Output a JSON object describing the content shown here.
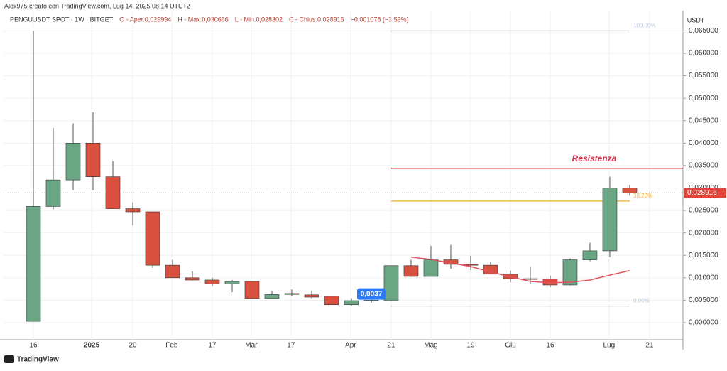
{
  "header": {
    "caption": "Alex975 creato con TradingView.com, Lug 14, 2025 08:14 UTC+2",
    "legend": [
      "PENGUUSDT SPOT · 1W · BITGET",
      "O - Aper.0,029994",
      "H - Max.0,030666",
      "L - Min.0,028302",
      "C - Chius.0,028916",
      "−0,001078 (−3,59%)"
    ]
  },
  "chart_data": {
    "type": "candlestick",
    "y_axis_title": "USDT",
    "up_color": "#6aa584",
    "down_color": "#d9503f",
    "overlay_color": "#e0505e",
    "open": [
      0.0003,
      0.0259,
      0.0318,
      0.04,
      0.0325,
      0.0254,
      0.0247,
      0.0128,
      0.01,
      0.0095,
      0.0086,
      0.0092,
      0.0054,
      0.0065,
      0.0062,
      0.0059,
      0.004,
      0.0049,
      0.0049,
      0.0127,
      0.0103,
      0.014,
      0.013,
      0.0128,
      0.0108,
      0.0098,
      0.0097,
      0.0084,
      0.014,
      0.016,
      0.029994
    ],
    "high": [
      0.065,
      0.0434,
      0.0444,
      0.0469,
      0.036,
      0.0268,
      0.0247,
      0.014,
      0.0114,
      0.01,
      0.0095,
      0.0092,
      0.0071,
      0.0074,
      0.0071,
      0.0059,
      0.0055,
      0.0055,
      0.0127,
      0.014,
      0.0171,
      0.0173,
      0.0149,
      0.0136,
      0.0116,
      0.0124,
      0.0105,
      0.0143,
      0.0178,
      0.0325,
      0.030666
    ],
    "low": [
      0.0003,
      0.0252,
      0.0295,
      0.0295,
      0.0254,
      0.0217,
      0.0122,
      0.01,
      0.0094,
      0.0081,
      0.0068,
      0.0054,
      0.0054,
      0.006,
      0.0054,
      0.004,
      0.0037,
      0.0044,
      0.0048,
      0.0102,
      0.0103,
      0.012,
      0.0117,
      0.0108,
      0.009,
      0.0086,
      0.0079,
      0.0083,
      0.0137,
      0.0146,
      0.028302
    ],
    "close": [
      0.0259,
      0.0318,
      0.04,
      0.0325,
      0.0254,
      0.0247,
      0.0128,
      0.01,
      0.0095,
      0.0086,
      0.0092,
      0.0054,
      0.0063,
      0.0063,
      0.0057,
      0.004,
      0.0049,
      0.005,
      0.0127,
      0.0103,
      0.014,
      0.013,
      0.0128,
      0.0108,
      0.0098,
      0.0097,
      0.0084,
      0.014,
      0.016,
      0.03,
      0.028916
    ],
    "overlay_values": [
      null,
      null,
      null,
      null,
      null,
      null,
      null,
      null,
      null,
      null,
      null,
      null,
      null,
      null,
      null,
      null,
      null,
      null,
      null,
      0.0146,
      0.0141,
      0.0133,
      0.0125,
      0.0113,
      0.0102,
      0.0092,
      0.0089,
      0.009,
      0.0095,
      0.0106,
      0.0116
    ],
    "xlim": [
      -1.5,
      32.68
    ],
    "xticks": [
      {
        "value": 0,
        "label": "16"
      },
      {
        "value": 2.93,
        "label": "2025"
      },
      {
        "value": 5,
        "label": "20"
      },
      {
        "value": 6.96,
        "label": "Feb"
      },
      {
        "value": 9,
        "label": "17"
      },
      {
        "value": 10.96,
        "label": "Mar"
      },
      {
        "value": 12.96,
        "label": "17"
      },
      {
        "value": 15.96,
        "label": "Apr"
      },
      {
        "value": 18,
        "label": "21"
      },
      {
        "value": 20,
        "label": "Mag"
      },
      {
        "value": 22,
        "label": "19"
      },
      {
        "value": 24,
        "label": "Giu"
      },
      {
        "value": 26,
        "label": "16"
      },
      {
        "value": 28.96,
        "label": "Lug"
      },
      {
        "value": 31,
        "label": "21"
      }
    ],
    "ylim": [
      -0.0038,
      0.0695
    ],
    "yticks": [
      {
        "value": 0,
        "label": "0,000000"
      },
      {
        "value": 0.005,
        "label": "0,005000"
      },
      {
        "value": 0.01,
        "label": "0,010000"
      },
      {
        "value": 0.015,
        "label": "0,015000"
      },
      {
        "value": 0.02,
        "label": "0,020000"
      },
      {
        "value": 0.025,
        "label": "0,025000"
      },
      {
        "value": 0.03,
        "label": "0,030000"
      },
      {
        "value": 0.035,
        "label": "0,035000"
      },
      {
        "value": 0.04,
        "label": "0,040000"
      },
      {
        "value": 0.045,
        "label": "0,045000"
      },
      {
        "value": 0.05,
        "label": "0,050000"
      },
      {
        "value": 0.055,
        "label": "0,055000"
      },
      {
        "value": 0.06,
        "label": "0,060000"
      },
      {
        "value": 0.065,
        "label": "0,065000"
      }
    ],
    "grid": true,
    "levels": [
      {
        "value": 0.0344,
        "label": "Resistenza",
        "color": "#d6314b"
      },
      {
        "value": 0.0271,
        "label": "38,20%",
        "color": "#f0b43c"
      },
      {
        "value": 0.065,
        "label": "100,00%",
        "color": "#c4c4c4"
      },
      {
        "value": 0.0037,
        "label": "0,00%",
        "color": "#c4c4c4"
      }
    ],
    "low_marker": {
      "value": 0.0037,
      "label": "0,0037",
      "color": "#2f7bf5"
    },
    "last_price": {
      "value": 0.028916,
      "label": "0,028916",
      "color": "#e0443a"
    }
  },
  "footer": {
    "brand": "TradingView"
  }
}
